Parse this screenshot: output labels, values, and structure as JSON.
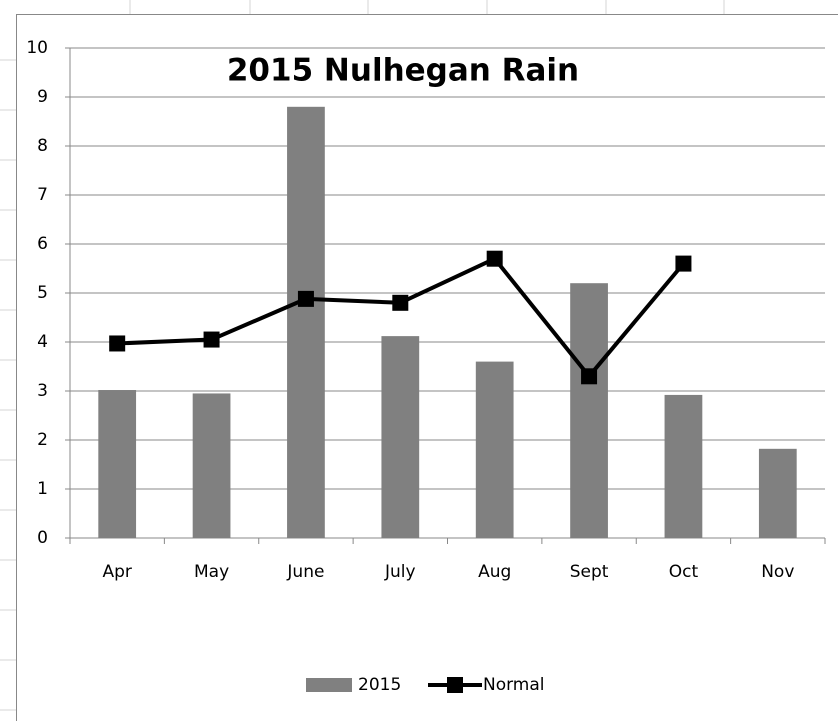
{
  "chart_data": {
    "type": "bar",
    "title": "2015 Nulhegan Rain",
    "categories": [
      "Apr",
      "May",
      "June",
      "July",
      "Aug",
      "Sept",
      "Oct",
      "Nov"
    ],
    "series": [
      {
        "name": "2015",
        "type": "bar",
        "color": "#808080",
        "values": [
          3.02,
          2.95,
          8.8,
          4.12,
          3.6,
          5.2,
          2.92,
          1.82
        ]
      },
      {
        "name": "Normal",
        "type": "line",
        "color": "#000000",
        "values": [
          3.97,
          4.05,
          4.88,
          4.8,
          5.7,
          3.3,
          5.6,
          null
        ]
      }
    ],
    "ylim": [
      0,
      10
    ],
    "yticks": [
      0,
      1,
      2,
      3,
      4,
      5,
      6,
      7,
      8,
      9,
      10
    ],
    "grid": true,
    "legend": "bottom"
  }
}
